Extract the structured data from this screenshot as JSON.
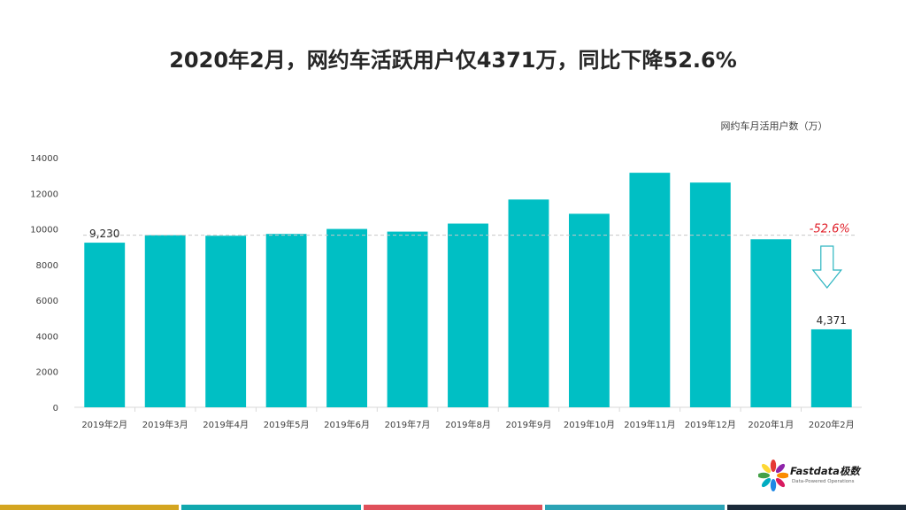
{
  "title": "2020年2月，网约车活跃用户仅4371万，同比下降52.6%",
  "unit_label": "网约车月活用户数（万）",
  "chart_data": {
    "type": "bar",
    "categories": [
      "2019年2月",
      "2019年3月",
      "2019年4月",
      "2019年5月",
      "2019年6月",
      "2019年7月",
      "2019年8月",
      "2019年9月",
      "2019年10月",
      "2019年11月",
      "2019年12月",
      "2020年1月",
      "2020年2月"
    ],
    "values": [
      9230,
      9650,
      9620,
      9720,
      10000,
      9850,
      10300,
      11650,
      10850,
      13150,
      12600,
      9420,
      4371
    ],
    "ylim": [
      0,
      14000
    ],
    "yticks": [
      0,
      2000,
      4000,
      6000,
      8000,
      10000,
      12000,
      14000
    ],
    "data_labels": [
      {
        "index": 0,
        "text": "9,230"
      },
      {
        "index": 12,
        "text": "4,371"
      }
    ],
    "reference_line_value": 9650,
    "change_annotation": "-52.6%",
    "bar_color": "#00BFC4",
    "annotation_color": "#E0202A"
  },
  "logo": {
    "name": "Fastdata极数",
    "tagline": "Data-Powered Operations"
  },
  "footer_colors": [
    "#D4A520",
    "#11A8AE",
    "#E0505A",
    "#2BA3B5",
    "#1B2A3A"
  ]
}
